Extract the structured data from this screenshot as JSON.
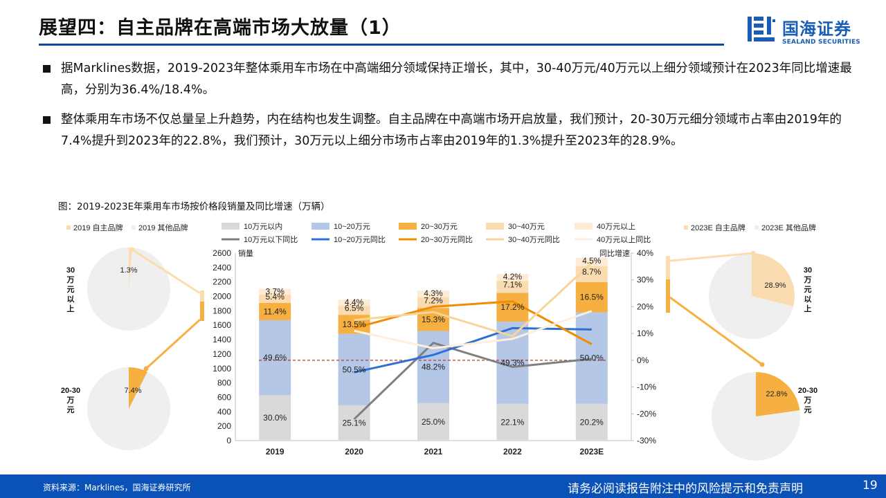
{
  "header": {
    "title": "展望四：自主品牌在高端市场大放量（1）",
    "logo_cn": "国海证券",
    "logo_en": "SEALAND SECURITIES"
  },
  "bullets": [
    "据Marklines数据，2019-2023年整体乘用车市场在中高端细分领域保持正增长，其中，30-40万元/40万元以上细分领域预计在2023年同比增速最高，分别为36.4%/18.4%。",
    "整体乘用车市场不仅总量呈上升趋势，内在结构也发生调整。自主品牌在中高端市场开启放量，我们预计，20-30万元细分领域市占率由2019年的7.4%提升到2023年的22.8%，我们预计，30万元以上细分市场市占率由2019年的1.3%提升至2023年的28.9%。"
  ],
  "figure_caption": "图：2019-2023E年乘用车市场按价格段销量及同比增速（万辆）",
  "footer": {
    "source": "资料来源：Marklines，国海证券研究所",
    "disclaimer": "请务必阅读报告附注中的风险提示和免责声明",
    "page": "19"
  },
  "colors": {
    "brand_blue": "#0b52b8",
    "seg_lt10": "#d9d9d9",
    "seg_10_20": "#b4c7e7",
    "seg_20_30": "#f5b041",
    "seg_30_40": "#fbdcb0",
    "seg_40p": "#fdebd6",
    "line_lt10": "#7f7f7f",
    "line_10_20": "#2e6fd6",
    "line_20_30": "#f08c00",
    "line_30_40": "#f8d49a",
    "line_40p": "#fdeedd",
    "pie_own": "#fbdcb0",
    "pie_own_2030": "#f5b041",
    "pie_other": "#efefef",
    "zero_line": "#c0392b"
  },
  "chart_data": [
    {
      "type": "bar",
      "subtype": "stacked-bar-with-lines",
      "categories": [
        "2019",
        "2020",
        "2021",
        "2022",
        "2023E"
      ],
      "ylabel": "销量",
      "y2label": "同比增速",
      "ylim": [
        0,
        2600
      ],
      "yticks": [
        "0",
        "200",
        "400",
        "600",
        "800",
        "1000",
        "1200",
        "1400",
        "1600",
        "1800",
        "2000",
        "2200",
        "2400",
        "2600"
      ],
      "y2lim": [
        -30,
        40
      ],
      "y2ticks": [
        "40%",
        "30%",
        "20%",
        "10%",
        "0%",
        "-10%",
        "-20%",
        "-30%"
      ],
      "legend": [
        "10万元以内",
        "10~20万元",
        "20~30万元",
        "30~40万元",
        "40万元以上",
        "10万元以下同比",
        "10~20万元同比",
        "20~30万元同比",
        "30~40万元同比",
        "40万元以上同比"
      ],
      "series": [
        {
          "name": "10万元以内",
          "values": [
            630,
            490,
            520,
            510,
            510
          ],
          "labels": [
            "30.0%",
            "25.1%",
            "25.0%",
            "22.1%",
            "20.2%"
          ]
        },
        {
          "name": "10~20万元",
          "values": [
            1040,
            990,
            1000,
            1140,
            1270
          ],
          "labels": [
            "49.6%",
            "50.5%",
            "48.2%",
            "49.3%",
            "50.0%"
          ]
        },
        {
          "name": "20~30万元",
          "values": [
            240,
            265,
            320,
            400,
            420
          ],
          "labels": [
            "11.4%",
            "13.5%",
            "15.3%",
            "17.2%",
            "16.5%"
          ]
        },
        {
          "name": "30~40万元",
          "values": [
            115,
            125,
            150,
            165,
            220
          ],
          "labels": [
            "5.4%",
            "6.5%",
            "7.2%",
            "7.1%",
            "8.7%"
          ]
        },
        {
          "name": "40万元以上",
          "values": [
            80,
            85,
            90,
            95,
            115
          ],
          "labels": [
            "3.7%",
            "4.4%",
            "4.3%",
            "4.2%",
            "4.5%"
          ]
        }
      ],
      "growth_series": [
        {
          "name": "10万元以下同比",
          "points": [
            [
              1,
              -22
            ],
            [
              2,
              6.5
            ],
            [
              3,
              -2.5
            ],
            [
              4,
              0.5
            ]
          ]
        },
        {
          "name": "10~20万元同比",
          "points": [
            [
              1,
              -4.5
            ],
            [
              2,
              2
            ],
            [
              3,
              12
            ],
            [
              4,
              11.5
            ]
          ]
        },
        {
          "name": "20~30万元同比",
          "points": [
            [
              1,
              12
            ],
            [
              2,
              20
            ],
            [
              3,
              22
            ],
            [
              4,
              6
            ]
          ]
        },
        {
          "name": "30~40万元同比",
          "points": [
            [
              1,
              15
            ],
            [
              2,
              18
            ],
            [
              3,
              9
            ],
            [
              4,
              36.4
            ]
          ]
        },
        {
          "name": "40万元以上同比",
          "points": [
            [
              1,
              11
            ],
            [
              2,
              4.5
            ],
            [
              3,
              8
            ],
            [
              4,
              18.4
            ]
          ]
        }
      ]
    },
    {
      "type": "pie",
      "title": "30万元以上",
      "legend": [
        "2019 自主品牌",
        "2019 其他品牌"
      ],
      "values": [
        1.3,
        98.7
      ],
      "labels": [
        "1.3%",
        ""
      ]
    },
    {
      "type": "pie",
      "title": "20-30万元",
      "values": [
        7.4,
        92.6
      ],
      "labels": [
        "7.4%",
        ""
      ]
    },
    {
      "type": "pie",
      "title": "30万元以上",
      "legend": [
        "2023E 自主品牌",
        "2023E 其他品牌"
      ],
      "values": [
        28.9,
        71.1
      ],
      "labels": [
        "28.9%",
        ""
      ]
    },
    {
      "type": "pie",
      "title": "20-30万元",
      "values": [
        22.8,
        77.2
      ],
      "labels": [
        "22.8%",
        ""
      ]
    }
  ]
}
